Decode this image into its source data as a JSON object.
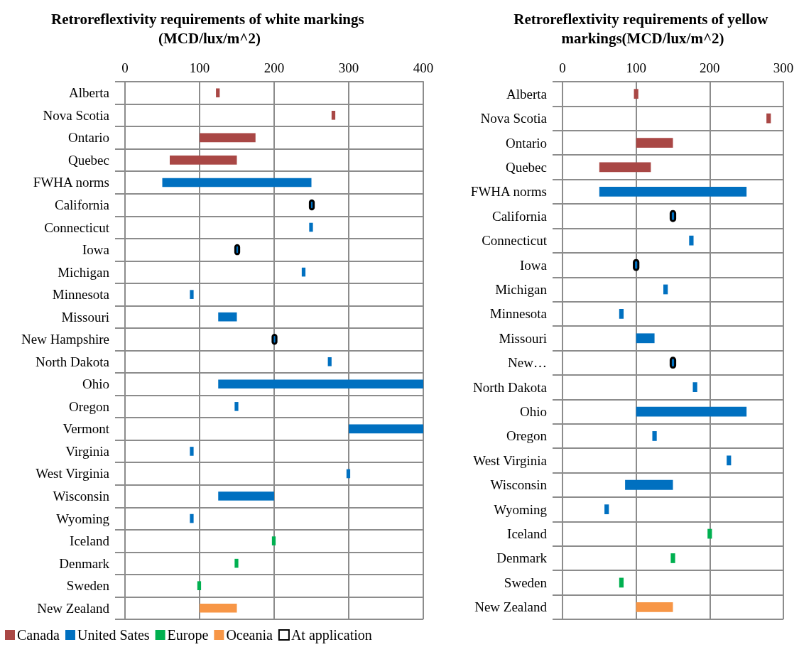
{
  "chart_data": [
    {
      "type": "bar",
      "orientation": "horizontal",
      "title": "Retroreflextivity requirements of white markings (MCD/lux/m^2)",
      "categories": [
        "Alberta",
        "Nova Scotia",
        "Ontario",
        "Quebec",
        "FWHA norms",
        "California",
        "Connecticut",
        "Iowa",
        "Michigan",
        "Minnesota",
        "Missouri",
        "New Hampshire",
        "North Dakota",
        "Ohio",
        "Oregon",
        "Vermont",
        "Virginia",
        "West Virginia",
        "Wisconsin",
        "Wyoming",
        "Iceland",
        "Denmark",
        "Sweden",
        "New Zealand"
      ],
      "series": [
        {
          "name": "Canada",
          "color": "#a94745",
          "base": [
            122,
            277,
            100,
            60,
            null,
            null,
            null,
            null,
            null,
            null,
            null,
            null,
            null,
            null,
            null,
            null,
            null,
            null,
            null,
            null,
            null,
            null,
            null,
            null
          ],
          "values": [
            5,
            5,
            75,
            90,
            null,
            null,
            null,
            null,
            null,
            null,
            null,
            null,
            null,
            null,
            null,
            null,
            null,
            null,
            null,
            null,
            null,
            null,
            null,
            null
          ]
        },
        {
          "name": "United Sates",
          "color": "#0070c0",
          "base": [
            null,
            null,
            null,
            null,
            50,
            null,
            247,
            null,
            237,
            87,
            125,
            null,
            272,
            125,
            147,
            300,
            87,
            297,
            125,
            87,
            null,
            null,
            null,
            null
          ],
          "values": [
            null,
            null,
            null,
            null,
            200,
            null,
            5,
            null,
            5,
            5,
            25,
            null,
            5,
            275,
            5,
            100,
            5,
            5,
            75,
            5,
            null,
            null,
            null,
            null
          ]
        },
        {
          "name": "Europe",
          "color": "#00b050",
          "base": [
            null,
            null,
            null,
            null,
            null,
            null,
            null,
            null,
            null,
            null,
            null,
            null,
            null,
            null,
            null,
            null,
            null,
            null,
            null,
            null,
            197,
            147,
            97,
            null
          ],
          "values": [
            null,
            null,
            null,
            null,
            null,
            null,
            null,
            null,
            null,
            null,
            null,
            null,
            null,
            null,
            null,
            null,
            null,
            null,
            null,
            null,
            5,
            5,
            5,
            null
          ]
        },
        {
          "name": "Oceania",
          "color": "#f79646",
          "base": [
            null,
            null,
            null,
            null,
            null,
            null,
            null,
            null,
            null,
            null,
            null,
            null,
            null,
            null,
            null,
            null,
            null,
            null,
            null,
            null,
            null,
            null,
            null,
            100
          ],
          "values": [
            null,
            null,
            null,
            null,
            null,
            null,
            null,
            null,
            null,
            null,
            null,
            null,
            null,
            null,
            null,
            null,
            null,
            null,
            null,
            null,
            null,
            null,
            null,
            50
          ]
        },
        {
          "name": "At application",
          "color": "#000000",
          "base": [
            null,
            null,
            null,
            null,
            null,
            248,
            null,
            148,
            null,
            null,
            null,
            198,
            null,
            null,
            null,
            null,
            null,
            null,
            null,
            null,
            null,
            null,
            null,
            null
          ],
          "values": [
            null,
            null,
            null,
            null,
            null,
            5,
            null,
            5,
            null,
            null,
            null,
            5,
            null,
            null,
            null,
            null,
            null,
            null,
            null,
            null,
            null,
            null,
            null,
            null
          ]
        }
      ],
      "xlim": [
        0,
        400
      ],
      "xticks": [
        0,
        100,
        200,
        300,
        400
      ],
      "grid": true,
      "legend": "bottom left"
    },
    {
      "type": "bar",
      "orientation": "horizontal",
      "title": "Retroreflextivity requirements of yellow markings(MCD/lux/m^2)",
      "categories": [
        "Alberta",
        "Nova Scotia",
        "Ontario",
        "Quebec",
        "FWHA norms",
        "California",
        "Connecticut",
        "Iowa",
        "Michigan",
        "Minnesota",
        "Missouri",
        "New…",
        "North Dakota",
        "Ohio",
        "Oregon",
        "West Virginia",
        "Wisconsin",
        "Wyoming",
        "Iceland",
        "Denmark",
        "Sweden",
        "New Zealand"
      ],
      "series": [
        {
          "color": "#a94745",
          "base": [
            97,
            277,
            100,
            50,
            null,
            null,
            null,
            null,
            null,
            null,
            null,
            null,
            null,
            null,
            null,
            null,
            null,
            null,
            null,
            null,
            null,
            null
          ],
          "values": [
            6,
            6,
            50,
            70,
            null,
            null,
            null,
            null,
            null,
            null,
            null,
            null,
            null,
            null,
            null,
            null,
            null,
            null,
            null,
            null,
            null,
            null
          ]
        },
        {
          "color": "#0070c0",
          "base": [
            null,
            null,
            null,
            null,
            50,
            null,
            172,
            null,
            137,
            77,
            100,
            null,
            177,
            100,
            122,
            223,
            85,
            57,
            null,
            null,
            null,
            null
          ],
          "values": [
            null,
            null,
            null,
            null,
            200,
            null,
            6,
            null,
            6,
            6,
            25,
            null,
            6,
            150,
            6,
            6,
            65,
            6,
            null,
            null,
            null,
            null
          ]
        },
        {
          "color": "#00b050",
          "base": [
            null,
            null,
            null,
            null,
            null,
            null,
            null,
            null,
            null,
            null,
            null,
            null,
            null,
            null,
            null,
            null,
            null,
            null,
            197,
            147,
            77,
            null
          ],
          "values": [
            null,
            null,
            null,
            null,
            null,
            null,
            null,
            null,
            null,
            null,
            null,
            null,
            null,
            null,
            null,
            null,
            null,
            null,
            6,
            6,
            6,
            null
          ]
        },
        {
          "color": "#f79646",
          "base": [
            null,
            null,
            null,
            null,
            null,
            null,
            null,
            null,
            null,
            null,
            null,
            null,
            null,
            null,
            null,
            null,
            null,
            null,
            null,
            null,
            null,
            100
          ],
          "values": [
            null,
            null,
            null,
            null,
            null,
            null,
            null,
            null,
            null,
            null,
            null,
            null,
            null,
            null,
            null,
            null,
            null,
            null,
            null,
            null,
            null,
            50
          ]
        },
        {
          "color": "#000000",
          "base": [
            null,
            null,
            null,
            null,
            null,
            147,
            null,
            97,
            null,
            null,
            null,
            147,
            null,
            null,
            null,
            null,
            null,
            null,
            null,
            null,
            null,
            null
          ],
          "values": [
            null,
            null,
            null,
            null,
            null,
            6,
            null,
            6,
            null,
            null,
            null,
            6,
            null,
            null,
            null,
            null,
            null,
            null,
            null,
            null,
            null,
            null
          ]
        }
      ],
      "xlim": [
        0,
        300
      ],
      "xticks": [
        0,
        100,
        200,
        300
      ],
      "grid": true
    }
  ]
}
